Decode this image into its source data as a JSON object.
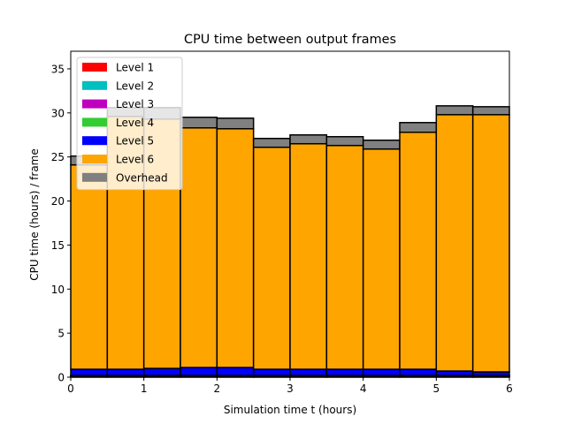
{
  "chart_data": {
    "type": "bar",
    "stacked": true,
    "title": "CPU time between output frames",
    "xlabel": "Simulation time t (hours)",
    "ylabel": "CPU time (hours) / frame",
    "xlim": [
      0,
      6
    ],
    "ylim": [
      0,
      37
    ],
    "xticks": [
      0,
      1,
      2,
      3,
      4,
      5,
      6
    ],
    "yticks": [
      0,
      5,
      10,
      15,
      20,
      25,
      30,
      35
    ],
    "grid": false,
    "legend_position": "upper-left",
    "bins": [
      [
        0,
        0.5
      ],
      [
        0.5,
        1
      ],
      [
        1,
        1.5
      ],
      [
        1.5,
        2
      ],
      [
        2,
        2.5
      ],
      [
        2.5,
        3
      ],
      [
        3,
        3.5
      ],
      [
        3.5,
        4
      ],
      [
        4,
        4.5
      ],
      [
        4.5,
        5
      ],
      [
        5,
        5.5
      ],
      [
        5.5,
        6
      ]
    ],
    "series": [
      {
        "name": "Level 1",
        "color": "#ff0000",
        "values": [
          0.05,
          0.05,
          0.05,
          0.05,
          0.05,
          0.05,
          0.05,
          0.05,
          0.05,
          0.05,
          0.05,
          0.05
        ]
      },
      {
        "name": "Level 2",
        "color": "#00bfbf",
        "values": [
          0.05,
          0.05,
          0.05,
          0.05,
          0.05,
          0.05,
          0.05,
          0.05,
          0.05,
          0.05,
          0.05,
          0.05
        ]
      },
      {
        "name": "Level 3",
        "color": "#bf00bf",
        "values": [
          0.05,
          0.05,
          0.05,
          0.05,
          0.05,
          0.05,
          0.05,
          0.05,
          0.05,
          0.05,
          0.05,
          0.05
        ]
      },
      {
        "name": "Level 4",
        "color": "#33cc33",
        "values": [
          0.05,
          0.05,
          0.05,
          0.05,
          0.05,
          0.05,
          0.05,
          0.05,
          0.05,
          0.05,
          0.05,
          0.05
        ]
      },
      {
        "name": "Level 5",
        "color": "#0000ff",
        "values": [
          0.7,
          0.7,
          0.8,
          0.9,
          0.9,
          0.7,
          0.7,
          0.7,
          0.7,
          0.7,
          0.5,
          0.4
        ]
      },
      {
        "name": "Level 6",
        "color": "#ffa500",
        "values": [
          23.2,
          28.7,
          28.3,
          27.2,
          27.1,
          25.2,
          25.6,
          25.4,
          25.0,
          26.9,
          29.1,
          29.2
        ]
      },
      {
        "name": "Overhead",
        "color": "#808080",
        "values": [
          1.0,
          1.0,
          1.3,
          1.2,
          1.2,
          1.0,
          1.0,
          1.0,
          1.0,
          1.1,
          1.0,
          0.9
        ]
      }
    ]
  }
}
